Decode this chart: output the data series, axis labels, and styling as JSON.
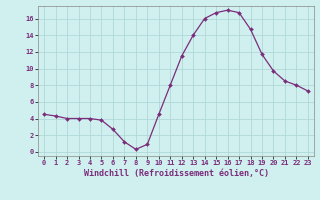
{
  "x": [
    0,
    1,
    2,
    3,
    4,
    5,
    6,
    7,
    8,
    9,
    10,
    11,
    12,
    13,
    14,
    15,
    16,
    17,
    18,
    19,
    20,
    21,
    22,
    23
  ],
  "y": [
    4.5,
    4.3,
    4.0,
    4.0,
    4.0,
    3.8,
    2.7,
    1.2,
    0.3,
    0.9,
    4.5,
    8.0,
    11.5,
    14.0,
    16.0,
    16.7,
    17.0,
    16.7,
    14.7,
    11.7,
    9.7,
    8.5,
    8.0,
    7.3
  ],
  "line_color": "#7b2d7b",
  "marker": "D",
  "marker_size": 2.0,
  "linewidth": 0.9,
  "bg_color": "#cff0ee",
  "grid_color": "#b0d8d8",
  "xlabel": "Windchill (Refroidissement éolien,°C)",
  "xlim": [
    -0.5,
    23.5
  ],
  "ylim": [
    -0.5,
    17.5
  ],
  "yticks": [
    0,
    2,
    4,
    6,
    8,
    10,
    12,
    14,
    16
  ],
  "xticks": [
    0,
    1,
    2,
    3,
    4,
    5,
    6,
    7,
    8,
    9,
    10,
    11,
    12,
    13,
    14,
    15,
    16,
    17,
    18,
    19,
    20,
    21,
    22,
    23
  ],
  "tick_fontsize": 5.0,
  "xlabel_fontsize": 6.0
}
